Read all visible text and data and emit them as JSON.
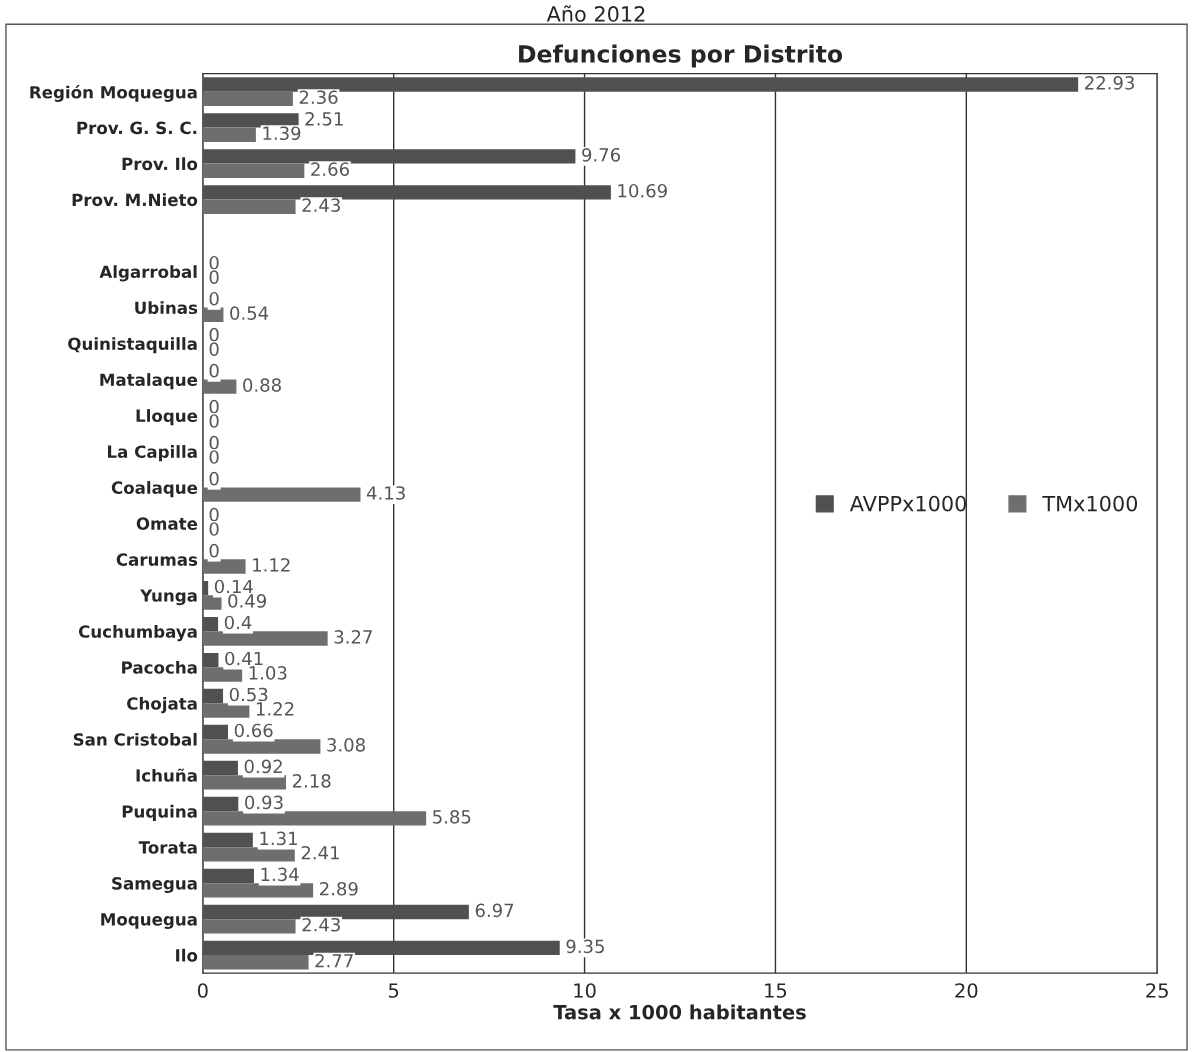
{
  "chart_data": {
    "type": "bar",
    "orientation": "horizontal",
    "subtitle": "Año 2012",
    "title": "Defunciones por Distrito",
    "xlabel": "Tasa x 1000 habitantes",
    "categories": [
      "Región Moquegua",
      "Prov. G. S. C.",
      "Prov. Ilo",
      "Prov. M.Nieto",
      null,
      "Algarrobal",
      "Ubinas",
      "Quinistaquilla",
      "Matalaque",
      "Lloque",
      "La Capilla",
      "Coalaque",
      "Omate",
      "Carumas",
      "Yunga",
      "Cuchumbaya",
      "Pacocha",
      "Chojata",
      "San Cristobal",
      "Ichuña",
      "Puquina",
      "Torata",
      "Samegua",
      "Moquegua",
      "Ilo"
    ],
    "series": [
      {
        "name": "AVPPx1000",
        "color": "#505050",
        "values": [
          22.93,
          2.51,
          9.76,
          10.69,
          null,
          0,
          0,
          0,
          0,
          0,
          0,
          0,
          0,
          0,
          0.14,
          0.4,
          0.41,
          0.53,
          0.66,
          0.92,
          0.93,
          1.31,
          1.34,
          6.97,
          9.35
        ]
      },
      {
        "name": "TMx1000",
        "color": "#6e6e6e",
        "values": [
          2.36,
          1.39,
          2.66,
          2.43,
          null,
          0,
          0.54,
          0,
          0.88,
          0,
          0,
          4.13,
          0,
          1.12,
          0.49,
          3.27,
          1.03,
          1.22,
          3.08,
          2.18,
          5.85,
          2.41,
          2.89,
          2.43,
          2.77
        ]
      }
    ],
    "xlim": [
      0,
      25
    ],
    "xticks": [
      0,
      5,
      10,
      15,
      20,
      25
    ],
    "grid": "x",
    "legend": "right",
    "data_labels": true
  }
}
